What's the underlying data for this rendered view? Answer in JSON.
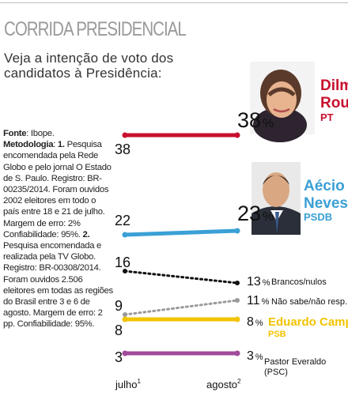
{
  "title": "CORRIDA PRESIDENCIAL",
  "subtitle_line1": "Veja a intenção de voto dos",
  "subtitle_line2": "candidatos à Presidência:",
  "source": {
    "label": "Fonte",
    "text": ": Ibope.",
    "method_label": "Metodologia",
    "colon": ": ",
    "item1_num": "1.",
    "item1_text": "Pesquisa encomendada pela Rede Globo e pelo jornal O Estado de S. Paulo. Registro: BR-00235/2014. Foram ouvidos 2002 eleitores em todo o país entre 18 e 21 de julho. Margem de erro: 2% Confiabilidade: 95%. ",
    "item2_num": "2.",
    "item2_text": " Pesquisa encomendada e realizada pela TV Globo. Registro: BR-00308/2014. Foram ouvidos 2.506 eleitores em todas as regiões do Brasil entre 3 e 6 de agosto. Margem de erro: 2 pp. Confiabilidade: 95%."
  },
  "colors": {
    "dilma": "#c8102e",
    "aecio": "#3aa0d5",
    "brancos": "#111111",
    "naosabe": "#9a9a9a",
    "campos": "#f2c300",
    "everaldo": "#a24a9a"
  },
  "chart_data": {
    "type": "line",
    "categories": [
      "julho",
      "agosto"
    ],
    "category_sup": [
      "1",
      "2"
    ],
    "ylim": [
      0,
      40
    ],
    "series": [
      {
        "key": "dilma",
        "name": "Dilma Rousseff",
        "name_lines": [
          "Dilma",
          "Rousseff"
        ],
        "party": "PT",
        "values": [
          38,
          38
        ],
        "start_label": "38",
        "end_label": "38",
        "style": "solid",
        "has_photo": true
      },
      {
        "key": "aecio",
        "name": "Aécio Neves",
        "name_lines": [
          "Aécio",
          "Neves"
        ],
        "party": "PSDB",
        "values": [
          22,
          23
        ],
        "start_label": "22",
        "end_label": "23",
        "style": "solid",
        "has_photo": true
      },
      {
        "key": "brancos",
        "name": "Brancos/nulos",
        "values": [
          16,
          13
        ],
        "start_label": "16",
        "end_label": "13",
        "style": "dotted"
      },
      {
        "key": "naosabe",
        "name": "Não sabe/não resp.",
        "values": [
          9,
          11
        ],
        "start_label": "9",
        "end_label": "11",
        "style": "dotted"
      },
      {
        "key": "campos",
        "name": "Eduardo Campos",
        "party": "PSB",
        "values": [
          8,
          8
        ],
        "start_label": "8",
        "end_label": "8",
        "style": "solid"
      },
      {
        "key": "everaldo",
        "name": "Pastor Everaldo",
        "name_lines": [
          "Pastor Everaldo",
          "(PSC)"
        ],
        "values": [
          3,
          3
        ],
        "start_label": "3",
        "end_label": "3",
        "style": "solid"
      }
    ]
  }
}
